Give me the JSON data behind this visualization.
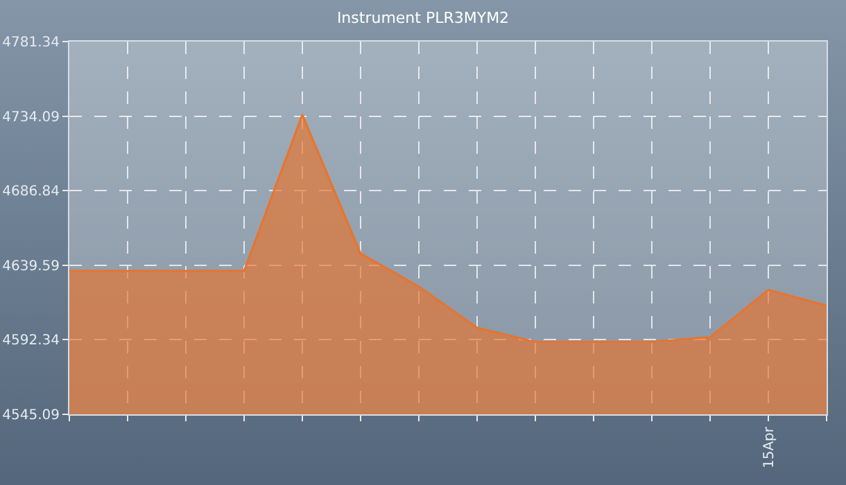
{
  "chart_data": {
    "type": "area",
    "title": "Instrument PLR3MYM2",
    "categories": [
      null,
      null,
      null,
      null,
      null,
      null,
      null,
      null,
      null,
      null,
      null,
      null,
      "15Apr",
      null
    ],
    "series": [
      {
        "color": "#e8742c",
        "values": [
          4636,
          4636,
          4636,
          4636,
          4735,
          4647,
          4626,
          4600,
          4591,
          4591,
          4591,
          4594,
          4624,
          4614
        ]
      }
    ],
    "ylim": [
      4545.09,
      4781.34
    ],
    "yticks": [
      4545.09,
      4592.34,
      4639.59,
      4686.84,
      4734.09,
      4781.34
    ],
    "grid": true
  }
}
